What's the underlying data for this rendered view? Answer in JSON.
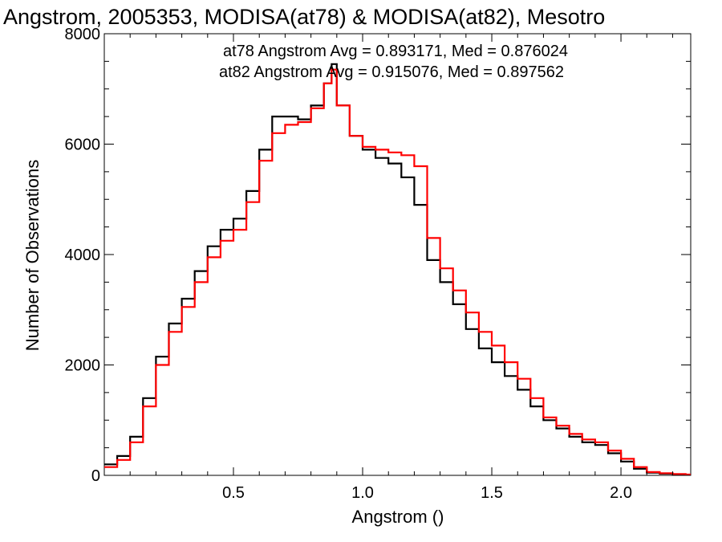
{
  "chart_data": {
    "type": "line",
    "step": true,
    "title": "Angstrom, 2005353, MODISA(at78) & MODISA(at82), Mesotro",
    "xlabel": "Angstrom ()",
    "ylabel": "Number of Observations",
    "xlim": [
      0.0,
      2.27
    ],
    "ylim": [
      0,
      8000
    ],
    "xticks": [
      0.5,
      1.0,
      1.5,
      2.0
    ],
    "xtick_labels": [
      "0.5",
      "1.0",
      "1.5",
      "2.0"
    ],
    "yticks": [
      0,
      2000,
      4000,
      6000,
      8000
    ],
    "ytick_labels": [
      "0",
      "2000",
      "4000",
      "6000",
      "8000"
    ],
    "grid": false,
    "legend_position": "top-right",
    "series": [
      {
        "name": "at78",
        "label": "at78 Angstrom Avg = 0.893171, Med = 0.876024",
        "color": "#000000",
        "x": [
          0.0,
          0.05,
          0.1,
          0.15,
          0.2,
          0.25,
          0.3,
          0.35,
          0.4,
          0.45,
          0.5,
          0.55,
          0.6,
          0.65,
          0.7,
          0.75,
          0.8,
          0.85,
          0.88,
          0.9,
          0.95,
          1.0,
          1.05,
          1.1,
          1.15,
          1.2,
          1.25,
          1.3,
          1.35,
          1.4,
          1.45,
          1.5,
          1.55,
          1.6,
          1.65,
          1.7,
          1.75,
          1.8,
          1.85,
          1.9,
          1.95,
          2.0,
          2.05,
          2.1,
          2.15,
          2.2,
          2.25
        ],
        "y": [
          200,
          350,
          700,
          1400,
          2150,
          2750,
          3200,
          3700,
          4150,
          4450,
          4650,
          5150,
          5900,
          6500,
          6500,
          6450,
          6700,
          7100,
          7450,
          6700,
          6150,
          5900,
          5750,
          5650,
          5400,
          4900,
          3900,
          3500,
          3100,
          2650,
          2300,
          2050,
          1800,
          1550,
          1250,
          1000,
          850,
          700,
          600,
          550,
          400,
          250,
          120,
          50,
          30,
          20,
          10
        ]
      },
      {
        "name": "at82",
        "label": "at82 Angstrom Avg = 0.915076, Med = 0.897562",
        "color": "#ff0000",
        "x": [
          0.0,
          0.05,
          0.1,
          0.15,
          0.2,
          0.25,
          0.3,
          0.35,
          0.4,
          0.45,
          0.5,
          0.55,
          0.6,
          0.65,
          0.7,
          0.75,
          0.8,
          0.85,
          0.88,
          0.9,
          0.95,
          1.0,
          1.05,
          1.1,
          1.15,
          1.2,
          1.25,
          1.3,
          1.35,
          1.4,
          1.45,
          1.5,
          1.55,
          1.6,
          1.65,
          1.7,
          1.75,
          1.8,
          1.85,
          1.9,
          1.95,
          2.0,
          2.05,
          2.1,
          2.15,
          2.2,
          2.25
        ],
        "y": [
          150,
          280,
          600,
          1250,
          2000,
          2600,
          3050,
          3500,
          3950,
          4250,
          4450,
          4950,
          5700,
          6200,
          6350,
          6400,
          6650,
          7100,
          7350,
          6700,
          6150,
          5950,
          5900,
          5850,
          5800,
          5600,
          4300,
          3750,
          3350,
          2950,
          2600,
          2350,
          2050,
          1750,
          1400,
          1050,
          900,
          750,
          650,
          600,
          450,
          300,
          150,
          60,
          40,
          25,
          15
        ]
      }
    ]
  }
}
